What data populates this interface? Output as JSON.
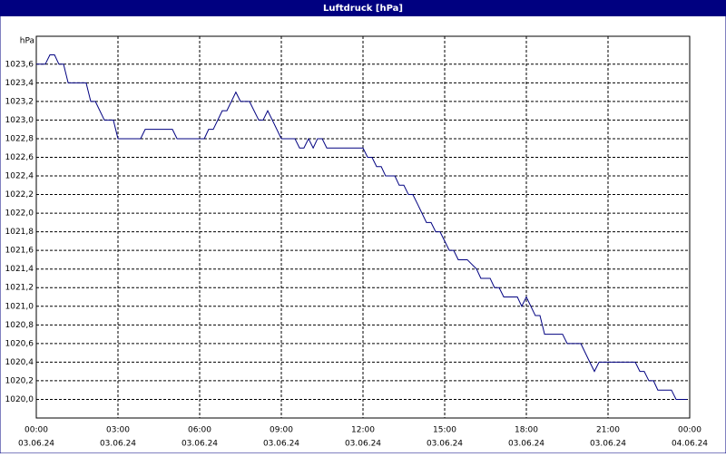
{
  "chart_data": {
    "type": "line",
    "title": "Luftdruck [hPa]",
    "y_unit": "hPa",
    "xlim": [
      0,
      24
    ],
    "ylim": [
      1019.8,
      1023.9
    ],
    "xticks": [
      {
        "value": 0,
        "label": "00:00",
        "date": "03.06.24"
      },
      {
        "value": 3,
        "label": "03:00",
        "date": "03.06.24"
      },
      {
        "value": 6,
        "label": "06:00",
        "date": "03.06.24"
      },
      {
        "value": 9,
        "label": "09:00",
        "date": "03.06.24"
      },
      {
        "value": 12,
        "label": "12:00",
        "date": "03.06.24"
      },
      {
        "value": 15,
        "label": "15:00",
        "date": "03.06.24"
      },
      {
        "value": 18,
        "label": "18:00",
        "date": "03.06.24"
      },
      {
        "value": 21,
        "label": "21:00",
        "date": "03.06.24"
      },
      {
        "value": 24,
        "label": "00:00",
        "date": "04.06.24"
      }
    ],
    "yticks": [
      {
        "value": 1020.0,
        "label": "1020,0"
      },
      {
        "value": 1020.2,
        "label": "1020,2"
      },
      {
        "value": 1020.4,
        "label": "1020,4"
      },
      {
        "value": 1020.6,
        "label": "1020,6"
      },
      {
        "value": 1020.8,
        "label": "1020,8"
      },
      {
        "value": 1021.0,
        "label": "1021,0"
      },
      {
        "value": 1021.2,
        "label": "1021,2"
      },
      {
        "value": 1021.4,
        "label": "1021,4"
      },
      {
        "value": 1021.6,
        "label": "1021,6"
      },
      {
        "value": 1021.8,
        "label": "1021,8"
      },
      {
        "value": 1022.0,
        "label": "1022,0"
      },
      {
        "value": 1022.2,
        "label": "1022,2"
      },
      {
        "value": 1022.4,
        "label": "1022,4"
      },
      {
        "value": 1022.6,
        "label": "1022,6"
      },
      {
        "value": 1022.8,
        "label": "1022,8"
      },
      {
        "value": 1023.0,
        "label": "1023,0"
      },
      {
        "value": 1023.2,
        "label": "1023,2"
      },
      {
        "value": 1023.4,
        "label": "1023,4"
      },
      {
        "value": 1023.6,
        "label": "1023,6"
      }
    ],
    "grid": true,
    "series": [
      {
        "color": "#000080",
        "x": [
          0,
          0.33,
          0.5,
          0.67,
          0.83,
          1,
          1.17,
          1.83,
          2,
          2.17,
          2.5,
          2.83,
          3,
          3.83,
          4,
          5,
          5.17,
          6.17,
          6.33,
          6.5,
          6.83,
          7,
          7.33,
          7.5,
          7.83,
          8.17,
          8.33,
          8.5,
          8.67,
          9,
          9.5,
          9.67,
          9.83,
          10,
          10.17,
          10.33,
          10.5,
          10.67,
          12,
          12.17,
          12.33,
          12.5,
          12.67,
          12.83,
          13.17,
          13.33,
          13.5,
          13.67,
          13.83,
          14,
          14.33,
          14.5,
          14.67,
          14.83,
          15,
          15.17,
          15.33,
          15.5,
          15.83,
          16.17,
          16.33,
          16.67,
          16.83,
          17,
          17.17,
          17.67,
          17.83,
          18,
          18.33,
          18.5,
          18.67,
          19.33,
          19.5,
          20,
          20.33,
          20.5,
          20.67,
          22,
          22.17,
          22.33,
          22.5,
          22.67,
          22.83,
          23.33,
          23.5,
          23.9
        ],
        "values": [
          1023.6,
          1023.6,
          1023.7,
          1023.7,
          1023.6,
          1023.6,
          1023.4,
          1023.4,
          1023.2,
          1023.2,
          1023.0,
          1023.0,
          1022.8,
          1022.8,
          1022.9,
          1022.9,
          1022.8,
          1022.8,
          1022.9,
          1022.9,
          1023.1,
          1023.1,
          1023.3,
          1023.2,
          1023.2,
          1023.0,
          1023.0,
          1023.1,
          1023.0,
          1022.8,
          1022.8,
          1022.7,
          1022.7,
          1022.8,
          1022.7,
          1022.8,
          1022.8,
          1022.7,
          1022.7,
          1022.6,
          1022.6,
          1022.5,
          1022.5,
          1022.4,
          1022.4,
          1022.3,
          1022.3,
          1022.2,
          1022.2,
          1022.1,
          1021.9,
          1021.9,
          1021.8,
          1021.8,
          1021.7,
          1021.6,
          1021.6,
          1021.5,
          1021.5,
          1021.4,
          1021.3,
          1021.3,
          1021.2,
          1021.2,
          1021.1,
          1021.1,
          1021.0,
          1021.1,
          1020.9,
          1020.9,
          1020.7,
          1020.7,
          1020.6,
          1020.6,
          1020.4,
          1020.3,
          1020.4,
          1020.4,
          1020.3,
          1020.3,
          1020.2,
          1020.2,
          1020.1,
          1020.1,
          1020.0,
          1020.0
        ]
      }
    ]
  }
}
